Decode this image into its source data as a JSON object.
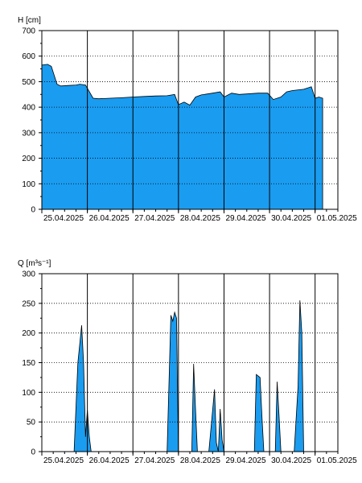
{
  "chart_data": [
    {
      "type": "area",
      "ylabel": "H [cm]",
      "ylim": [
        0,
        700
      ],
      "yticks": [
        0,
        100,
        200,
        300,
        400,
        500,
        600,
        700
      ],
      "xlim": [
        "2025-04-25T00:00",
        "2025-05-01T12:00"
      ],
      "xticks": [
        "25.04.2025",
        "26.04.2025",
        "27.04.2025",
        "28.04.2025",
        "29.04.2025",
        "30.04.2025",
        "01.05.2025"
      ],
      "fill_color": "#1a9cf0",
      "grid": "dotted",
      "x": [
        "2025-04-25T00:00",
        "2025-04-25T03:00",
        "2025-04-25T05:00",
        "2025-04-25T08:00",
        "2025-04-25T10:00",
        "2025-04-25T14:00",
        "2025-04-25T18:00",
        "2025-04-25T20:00",
        "2025-04-25T23:00",
        "2025-04-26T03:00",
        "2025-04-26T06:00",
        "2025-04-26T12:00",
        "2025-04-26T18:00",
        "2025-04-27T00:00",
        "2025-04-27T06:00",
        "2025-04-27T12:00",
        "2025-04-27T18:00",
        "2025-04-27T22:00",
        "2025-04-28T00:00",
        "2025-04-28T03:00",
        "2025-04-28T06:00",
        "2025-04-28T09:00",
        "2025-04-28T12:00",
        "2025-04-28T18:00",
        "2025-04-28T22:00",
        "2025-04-29T00:00",
        "2025-04-29T04:00",
        "2025-04-29T08:00",
        "2025-04-29T12:00",
        "2025-04-29T18:00",
        "2025-04-29T23:00",
        "2025-04-30T02:00",
        "2025-04-30T06:00",
        "2025-04-30T09:00",
        "2025-04-30T12:00",
        "2025-04-30T18:00",
        "2025-04-30T22:00",
        "2025-05-01T00:00",
        "2025-05-01T02:00",
        "2025-05-01T04:00"
      ],
      "y": [
        565,
        568,
        560,
        490,
        483,
        485,
        487,
        490,
        487,
        435,
        433,
        435,
        437,
        440,
        442,
        444,
        445,
        450,
        410,
        420,
        408,
        440,
        448,
        455,
        460,
        440,
        455,
        450,
        452,
        455,
        455,
        430,
        440,
        460,
        465,
        470,
        480,
        435,
        440,
        435
      ]
    },
    {
      "type": "area",
      "ylabel": "Q [m³s⁻¹]",
      "ylim": [
        0,
        300
      ],
      "yticks": [
        0,
        50,
        100,
        150,
        200,
        250,
        300
      ],
      "xlim": [
        "2025-04-25T00:00",
        "2025-05-01T12:00"
      ],
      "xticks": [
        "25.04.2025",
        "26.04.2025",
        "27.04.2025",
        "28.04.2025",
        "29.04.2025",
        "30.04.2025",
        "01.05.2025"
      ],
      "fill_color": "#1a9cf0",
      "grid": "dotted",
      "x": [
        "2025-04-25T00:00",
        "2025-04-25T17:00",
        "2025-04-25T19:00",
        "2025-04-25T21:00",
        "2025-04-25T22:00",
        "2025-04-25T23:00",
        "2025-04-26T00:00",
        "2025-04-26T01:00",
        "2025-04-26T02:00",
        "2025-04-27T18:00",
        "2025-04-27T20:00",
        "2025-04-27T21:00",
        "2025-04-27T22:00",
        "2025-04-27T23:00",
        "2025-04-28T00:00",
        "2025-04-28T01:00",
        "2025-04-28T02:00",
        "2025-04-28T07:00",
        "2025-04-28T08:00",
        "2025-04-28T09:00",
        "2025-04-28T10:00",
        "2025-04-28T16:00",
        "2025-04-28T19:00",
        "2025-04-28T20:00",
        "2025-04-28T21:00",
        "2025-04-28T22:00",
        "2025-04-28T23:00",
        "2025-04-29T00:00",
        "2025-04-29T01:00",
        "2025-04-29T02:00",
        "2025-04-29T03:00",
        "2025-04-29T16:00",
        "2025-04-29T17:00",
        "2025-04-29T19:00",
        "2025-04-29T20:00",
        "2025-04-29T21:00",
        "2025-04-30T03:00",
        "2025-04-30T04:00",
        "2025-04-30T05:00",
        "2025-04-30T06:00",
        "2025-04-30T13:00",
        "2025-04-30T15:00",
        "2025-04-30T16:00",
        "2025-04-30T17:00",
        "2025-04-30T18:00",
        "2025-05-01T12:00"
      ],
      "y": [
        0,
        0,
        150,
        213,
        150,
        25,
        70,
        25,
        0,
        0,
        230,
        220,
        235,
        225,
        0,
        0,
        0,
        0,
        148,
        70,
        0,
        0,
        105,
        15,
        0,
        72,
        20,
        0,
        0,
        0,
        0,
        0,
        130,
        125,
        60,
        0,
        0,
        118,
        60,
        0,
        0,
        110,
        255,
        200,
        0,
        0
      ]
    }
  ]
}
